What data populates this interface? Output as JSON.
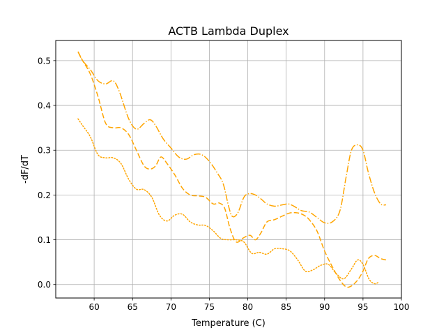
{
  "chart_data": {
    "type": "line",
    "title": "ACTB Lambda Duplex",
    "xlabel": "Temperature (C)",
    "ylabel": "-dF/dT",
    "xlim": [
      55.0,
      100.0
    ],
    "ylim": [
      -0.03,
      0.545
    ],
    "xticks": [
      60,
      65,
      70,
      75,
      80,
      85,
      90,
      95,
      100
    ],
    "yticks": [
      0.0,
      0.1,
      0.2,
      0.3,
      0.4,
      0.5
    ],
    "xtick_labels": [
      "60",
      "65",
      "70",
      "75",
      "80",
      "85",
      "90",
      "95",
      "100"
    ],
    "ytick_labels": [
      "0.0",
      "0.1",
      "0.2",
      "0.3",
      "0.4",
      "0.5"
    ],
    "grid": true,
    "legend": "none",
    "series": [
      {
        "style": "dashdot",
        "color": "#ffa500",
        "x": [
          57.9,
          58.5,
          59.5,
          60.5,
          61.5,
          62.5,
          63.3,
          64.5,
          65.5,
          66.5,
          67.3,
          68.0,
          69.0,
          70.0,
          71.0,
          72.0,
          73.0,
          74.0,
          75.0,
          76.0,
          76.8,
          77.5,
          78.0,
          78.7,
          79.5,
          80.2,
          81.0,
          81.8,
          82.5,
          83.5,
          84.5,
          85.3,
          86.0,
          87.0,
          88.0,
          89.0,
          90.0,
          91.0,
          92.0,
          92.8,
          93.5,
          94.3,
          95.0,
          95.7,
          96.5,
          97.3,
          98.0
        ],
        "y": [
          0.52,
          0.5,
          0.48,
          0.455,
          0.448,
          0.455,
          0.43,
          0.37,
          0.347,
          0.36,
          0.368,
          0.355,
          0.325,
          0.305,
          0.285,
          0.28,
          0.29,
          0.29,
          0.275,
          0.25,
          0.225,
          0.175,
          0.152,
          0.16,
          0.195,
          0.203,
          0.2,
          0.19,
          0.18,
          0.175,
          0.178,
          0.18,
          0.175,
          0.165,
          0.162,
          0.15,
          0.138,
          0.14,
          0.165,
          0.24,
          0.3,
          0.312,
          0.3,
          0.25,
          0.205,
          0.18,
          0.178
        ]
      },
      {
        "style": "dashed",
        "color": "#ffa500",
        "x": [
          57.9,
          58.5,
          59.5,
          60.5,
          61.5,
          62.5,
          63.5,
          64.5,
          65.5,
          66.5,
          67.3,
          68.0,
          68.7,
          69.5,
          70.5,
          71.5,
          72.5,
          73.5,
          74.5,
          75.5,
          76.3,
          77.0,
          77.7,
          78.5,
          79.5,
          80.3,
          81.0,
          81.7,
          82.5,
          83.5,
          84.5,
          85.5,
          86.5,
          87.3,
          88.0,
          89.0,
          90.0,
          91.0,
          92.0,
          92.8,
          93.5,
          94.3,
          95.0,
          95.7,
          96.5,
          97.3,
          98.0
        ],
        "y": [
          0.52,
          0.5,
          0.47,
          0.42,
          0.36,
          0.35,
          0.35,
          0.335,
          0.3,
          0.265,
          0.258,
          0.265,
          0.285,
          0.27,
          0.245,
          0.215,
          0.2,
          0.198,
          0.195,
          0.18,
          0.182,
          0.17,
          0.125,
          0.095,
          0.105,
          0.11,
          0.1,
          0.115,
          0.14,
          0.145,
          0.153,
          0.16,
          0.16,
          0.155,
          0.145,
          0.12,
          0.075,
          0.04,
          0.01,
          -0.005,
          -0.003,
          0.01,
          0.03,
          0.058,
          0.065,
          0.058,
          0.055
        ]
      },
      {
        "style": "dotted",
        "color": "#ffa500",
        "x": [
          57.9,
          58.5,
          59.5,
          60.5,
          61.5,
          62.5,
          63.5,
          64.5,
          65.5,
          66.5,
          67.5,
          68.5,
          69.5,
          70.5,
          71.5,
          72.5,
          73.5,
          74.5,
          75.5,
          76.5,
          77.5,
          78.5,
          79.5,
          80.5,
          81.5,
          82.5,
          83.5,
          84.5,
          85.5,
          86.5,
          87.5,
          88.5,
          89.5,
          90.5,
          91.5,
          92.5,
          93.5,
          94.3,
          95.0,
          95.8,
          96.5,
          97.0
        ],
        "y": [
          0.37,
          0.355,
          0.33,
          0.29,
          0.283,
          0.283,
          0.27,
          0.235,
          0.213,
          0.212,
          0.195,
          0.155,
          0.142,
          0.155,
          0.157,
          0.14,
          0.133,
          0.132,
          0.12,
          0.103,
          0.1,
          0.1,
          0.095,
          0.07,
          0.072,
          0.068,
          0.08,
          0.08,
          0.075,
          0.055,
          0.03,
          0.033,
          0.043,
          0.045,
          0.025,
          0.013,
          0.035,
          0.055,
          0.045,
          0.012,
          0.002,
          0.005
        ]
      }
    ]
  }
}
